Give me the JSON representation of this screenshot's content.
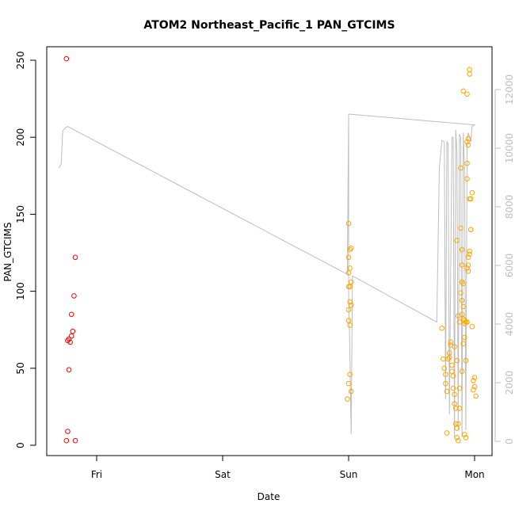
{
  "chart_data": {
    "type": "scatter",
    "title": "ATOM2 Northeast_Pacific_1 PAN_GTCIMS",
    "xlabel": "Date",
    "ylabel": "PAN_GTCIMS",
    "x_ticks": [
      "Fri",
      "Sat",
      "Sun",
      "Mon"
    ],
    "x_tick_days": [
      1,
      2,
      3,
      4
    ],
    "x_range_days": [
      0.7,
      4.08
    ],
    "ylim": [
      0,
      250
    ],
    "y_ticks": [
      0,
      50,
      100,
      150,
      200,
      250
    ],
    "y2lim": [
      0,
      12000
    ],
    "y2_ticks": [
      0,
      2000,
      4000,
      6000,
      8000,
      10000,
      12000
    ],
    "grid": false,
    "legend": "none",
    "colors": {
      "series_red": "#ff0000",
      "series_orange": "#ffa500",
      "altitude_line": "#bdbdbd"
    },
    "series": [
      {
        "color": "red",
        "points": [
          [
            0.76,
            251
          ],
          [
            0.77,
            9
          ],
          [
            0.76,
            3
          ],
          [
            0.77,
            68
          ],
          [
            0.78,
            69
          ],
          [
            0.79,
            67
          ],
          [
            0.78,
            49
          ],
          [
            0.8,
            71
          ],
          [
            0.81,
            74
          ],
          [
            0.8,
            85
          ],
          [
            0.82,
            97
          ],
          [
            0.83,
            122
          ],
          [
            0.83,
            3
          ]
        ]
      },
      {
        "color": "orange",
        "points": [
          [
            3.0,
            144
          ],
          [
            3.01,
            127
          ],
          [
            3.02,
            128
          ],
          [
            3.0,
            122
          ],
          [
            3.01,
            115
          ],
          [
            3.02,
            106
          ],
          [
            3.0,
            112
          ],
          [
            3.0,
            103
          ],
          [
            3.01,
            103
          ],
          [
            3.01,
            93
          ],
          [
            3.02,
            91
          ],
          [
            3.0,
            88
          ],
          [
            3.0,
            81
          ],
          [
            3.01,
            78
          ],
          [
            3.01,
            46
          ],
          [
            3.0,
            40
          ],
          [
            3.02,
            35
          ],
          [
            2.99,
            30
          ],
          [
            3.74,
            76
          ],
          [
            3.75,
            56
          ],
          [
            3.76,
            50
          ],
          [
            3.77,
            46
          ],
          [
            3.77,
            40
          ],
          [
            3.78,
            35
          ],
          [
            3.78,
            8
          ],
          [
            3.79,
            56
          ],
          [
            3.8,
            57
          ],
          [
            3.8,
            60
          ],
          [
            3.81,
            67
          ],
          [
            3.81,
            65
          ],
          [
            3.82,
            52
          ],
          [
            3.82,
            48
          ],
          [
            3.83,
            45
          ],
          [
            3.83,
            37
          ],
          [
            3.84,
            33
          ],
          [
            3.84,
            27
          ],
          [
            3.85,
            24
          ],
          [
            3.85,
            14
          ],
          [
            3.86,
            11
          ],
          [
            3.86,
            5
          ],
          [
            3.87,
            3
          ],
          [
            3.84,
            64
          ],
          [
            3.86,
            55
          ],
          [
            3.88,
            37
          ],
          [
            3.88,
            24
          ],
          [
            3.87,
            14
          ],
          [
            3.89,
            180
          ],
          [
            3.89,
            141
          ],
          [
            3.9,
            127
          ],
          [
            3.9,
            117
          ],
          [
            3.9,
            106
          ],
          [
            3.91,
            105
          ],
          [
            3.89,
            99
          ],
          [
            3.9,
            94
          ],
          [
            3.91,
            90
          ],
          [
            3.9,
            85
          ],
          [
            3.91,
            82
          ],
          [
            3.92,
            81
          ],
          [
            3.92,
            79
          ],
          [
            3.92,
            70
          ],
          [
            3.91,
            66
          ],
          [
            3.9,
            48
          ],
          [
            3.93,
            55
          ],
          [
            3.93,
            80
          ],
          [
            3.94,
            80
          ],
          [
            3.94,
            115
          ],
          [
            3.95,
            113
          ],
          [
            3.95,
            117
          ],
          [
            3.95,
            122
          ],
          [
            3.96,
            124
          ],
          [
            3.96,
            126
          ],
          [
            3.97,
            140
          ],
          [
            3.97,
            140
          ],
          [
            3.98,
            164
          ],
          [
            3.97,
            160
          ],
          [
            3.96,
            160
          ],
          [
            3.94,
            173
          ],
          [
            3.94,
            183
          ],
          [
            3.95,
            195
          ],
          [
            3.94,
            197
          ],
          [
            3.95,
            199
          ],
          [
            3.91,
            230
          ],
          [
            3.94,
            228
          ],
          [
            3.96,
            241
          ],
          [
            3.96,
            244
          ],
          [
            3.98,
            77
          ],
          [
            3.99,
            42
          ],
          [
            4.0,
            44
          ],
          [
            4.0,
            38
          ],
          [
            4.01,
            32
          ],
          [
            3.99,
            36
          ],
          [
            3.92,
            7
          ],
          [
            3.93,
            5
          ],
          [
            3.86,
            133
          ],
          [
            3.87,
            84
          ],
          [
            3.88,
            80
          ]
        ]
      }
    ],
    "altitude_line": [
      [
        0.7,
        180
      ],
      [
        0.72,
        183
      ],
      [
        0.72,
        185
      ],
      [
        0.73,
        204
      ],
      [
        0.75,
        206
      ],
      [
        0.77,
        207
      ],
      [
        2.99,
        111
      ],
      [
        3.0,
        215
      ],
      [
        3.0,
        100
      ],
      [
        3.01,
        60
      ],
      [
        3.02,
        7
      ],
      [
        3.03,
        110
      ],
      [
        3.7,
        80
      ],
      [
        3.72,
        180
      ],
      [
        3.74,
        198
      ],
      [
        3.76,
        197
      ],
      [
        3.77,
        30
      ],
      [
        3.78,
        197
      ],
      [
        3.79,
        196
      ],
      [
        3.8,
        20
      ],
      [
        3.82,
        200
      ],
      [
        3.83,
        200
      ],
      [
        3.84,
        5
      ],
      [
        3.85,
        205
      ],
      [
        3.86,
        190
      ],
      [
        3.87,
        10
      ],
      [
        3.88,
        202
      ],
      [
        3.89,
        200
      ],
      [
        3.9,
        5
      ],
      [
        3.91,
        203
      ],
      [
        3.92,
        180
      ],
      [
        3.93,
        10
      ],
      [
        3.94,
        195
      ],
      [
        3.95,
        203
      ],
      [
        3.96,
        200
      ],
      [
        3.97,
        197
      ],
      [
        3.98,
        207
      ],
      [
        4.0,
        208
      ],
      [
        3.0,
        215
      ],
      [
        4.0,
        208
      ]
    ]
  }
}
